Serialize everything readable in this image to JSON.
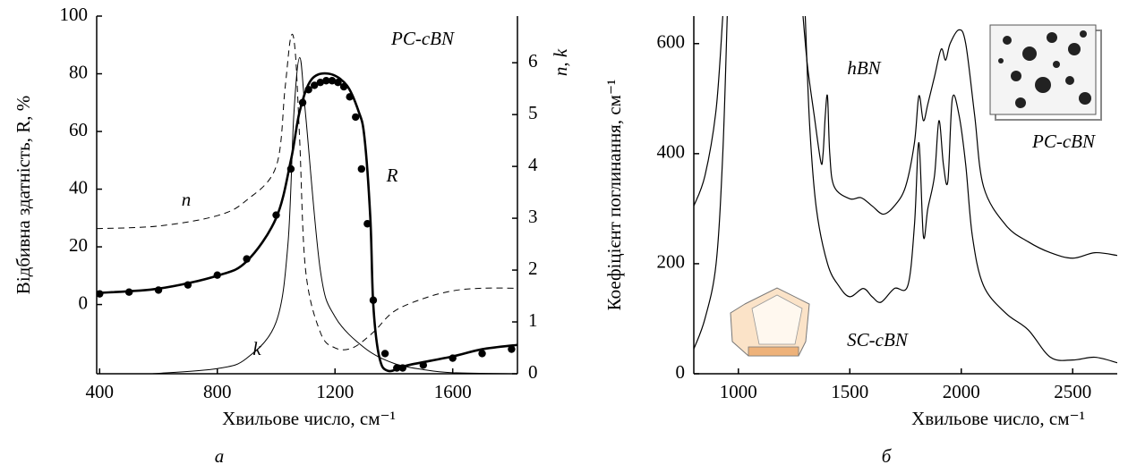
{
  "chart_data": [
    {
      "type": "line",
      "panel_label": "а",
      "xlabel": "Хвильове число, см⁻¹",
      "ylabel": "Відбивна здатність, R, %",
      "y2label": "n, k",
      "xlim": [
        390,
        1820
      ],
      "xticks": [
        400,
        800,
        1200,
        1600
      ],
      "ylim": [
        -24,
        100
      ],
      "yticks": [
        0,
        20,
        40,
        60,
        80,
        100
      ],
      "y2lim": [
        0,
        6.9
      ],
      "y2ticks": [
        0,
        1,
        2,
        3,
        4,
        5,
        6
      ],
      "annotations": [
        "PC-cBN",
        "n",
        "k",
        "R"
      ],
      "series": [
        {
          "color": "#000000",
          "line_style": "solid",
          "line_width": 2.6,
          "x": [
            390,
            600,
            800,
            900,
            1000,
            1050,
            1080,
            1120,
            1180,
            1240,
            1280,
            1300,
            1320,
            1330,
            1350,
            1380,
            1450,
            1600,
            1700,
            1820
          ],
          "values": [
            4,
            5.5,
            10,
            15,
            30,
            50,
            67,
            78,
            80,
            76,
            67,
            58,
            30,
            0,
            -18,
            -23,
            -21,
            -18,
            -15.5,
            -14
          ]
        },
        {
          "color": "#000000",
          "line_style": "none",
          "marker": "circle",
          "x": [
            400,
            500,
            600,
            700,
            800,
            900,
            1000,
            1050,
            1090,
            1110,
            1130,
            1150,
            1170,
            1190,
            1210,
            1230,
            1250,
            1270,
            1290,
            1310,
            1330,
            1370,
            1410,
            1430,
            1500,
            1600,
            1700,
            1800
          ],
          "values": [
            3.7,
            4.3,
            5,
            6.8,
            10.2,
            15.8,
            31,
            47,
            70,
            74.5,
            76,
            77,
            77.6,
            77.6,
            77,
            75.5,
            72,
            65,
            47,
            28,
            1.5,
            -17,
            -22,
            -22,
            -21,
            -18.6,
            -17,
            -15.5
          ]
        },
        {
          "axis": "y2",
          "color": "#000000",
          "line_style": "dashed",
          "line_width": 1,
          "x": [
            390,
            600,
            800,
            900,
            1000,
            1030,
            1050,
            1065,
            1080,
            1100,
            1150,
            1200,
            1260,
            1330,
            1400,
            1500,
            1600,
            1700,
            1820
          ],
          "values": [
            2.8,
            2.85,
            3.05,
            3.35,
            4.0,
            5.5,
            6.5,
            6.2,
            4.5,
            2.0,
            0.8,
            0.5,
            0.5,
            0.8,
            1.2,
            1.45,
            1.6,
            1.65,
            1.65
          ]
        },
        {
          "axis": "y2",
          "color": "#000000",
          "line_style": "solid",
          "line_width": 1,
          "x": [
            580,
            800,
            900,
            1000,
            1040,
            1060,
            1080,
            1100,
            1150,
            1200,
            1300,
            1400,
            1500,
            1600,
            1820
          ],
          "values": [
            0,
            0.1,
            0.3,
            1.0,
            2.5,
            5.0,
            6.1,
            5.0,
            2.0,
            1.1,
            0.5,
            0.2,
            0.08,
            0.02,
            0
          ]
        }
      ]
    },
    {
      "type": "line",
      "panel_label": "б",
      "xlabel": "Хвильове число, см⁻¹",
      "ylabel": "Коефіцієнт поглинання, см⁻¹",
      "xlim": [
        800,
        2700
      ],
      "xticks": [
        1000,
        1500,
        2000,
        2500
      ],
      "ylim": [
        0,
        650
      ],
      "yticks": [
        0,
        200,
        400,
        600
      ],
      "annotations": [
        "hBN",
        "PC-cBN",
        "SC-cBN"
      ],
      "series": [
        {
          "color": "#000000",
          "line_style": "solid",
          "line_width": 1.2,
          "x": [
            800,
            850,
            900,
            930,
            1000,
            1290,
            1310,
            1340,
            1370,
            1380,
            1390,
            1400,
            1410,
            1430,
            1500,
            1550,
            1600,
            1650,
            1700,
            1750,
            1790,
            1810,
            1830,
            1850,
            1880,
            1910,
            1930,
            1950,
            1990,
            2020,
            2060,
            2100,
            2200,
            2300,
            2400,
            2500,
            2600,
            2700
          ],
          "values": [
            305,
            360,
            480,
            650,
            null,
            650,
            560,
            470,
            385,
            400,
            470,
            504,
            400,
            340,
            318,
            320,
            305,
            290,
            305,
            340,
            420,
            505,
            460,
            490,
            540,
            590,
            570,
            600,
            625,
            600,
            470,
            340,
            270,
            240,
            220,
            210,
            220,
            215
          ]
        },
        {
          "color": "#000000",
          "line_style": "solid",
          "line_width": 1.2,
          "x": [
            800,
            850,
            900,
            930,
            950,
            1000,
            1300,
            1320,
            1350,
            1400,
            1450,
            1500,
            1560,
            1600,
            1640,
            1700,
            1760,
            1790,
            1810,
            1830,
            1850,
            1880,
            1900,
            1920,
            1940,
            1960,
            1990,
            2020,
            2050,
            2100,
            2200,
            2300,
            2400,
            2500,
            2600,
            2700
          ],
          "values": [
            45,
            100,
            200,
            400,
            650,
            null,
            650,
            450,
            300,
            200,
            160,
            140,
            155,
            140,
            130,
            155,
            160,
            270,
            420,
            250,
            300,
            360,
            460,
            380,
            350,
            500,
            470,
            380,
            250,
            160,
            110,
            80,
            30,
            25,
            30,
            20
          ]
        }
      ]
    }
  ]
}
